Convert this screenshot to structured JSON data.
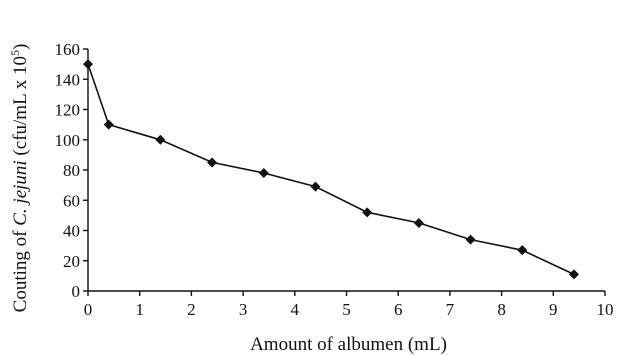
{
  "chart_data": {
    "type": "line",
    "title": "",
    "xlabel": "Amount of albumen (mL)",
    "ylabel_parts": {
      "prefix": "Couting of ",
      "italic": "C. jejuni",
      "suffix": " (cfu/mL x 10",
      "superscript": "5",
      "close": ")"
    },
    "xlim": [
      0,
      10
    ],
    "ylim": [
      0,
      160
    ],
    "x_ticks": [
      "0",
      "1",
      "2",
      "3",
      "4",
      "5",
      "6",
      "7",
      "8",
      "9",
      "10"
    ],
    "y_ticks": [
      "0",
      "20",
      "40",
      "60",
      "80",
      "100",
      "120",
      "140",
      "160"
    ],
    "grid": false,
    "legend": "none",
    "series": [
      {
        "marker": "diamond",
        "color": "#111111",
        "x": [
          0,
          0.4,
          1.4,
          2.4,
          3.4,
          4.4,
          5.4,
          6.4,
          7.4,
          8.4,
          9.4
        ],
        "y": [
          150,
          110,
          100,
          85,
          78,
          69,
          52,
          45,
          34,
          27,
          11
        ]
      }
    ]
  }
}
